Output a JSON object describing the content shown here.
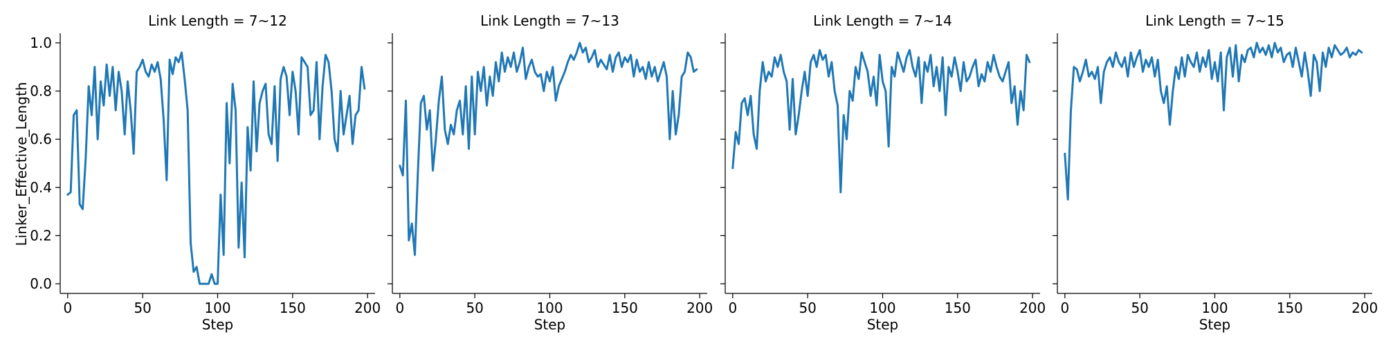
{
  "chart_data": {
    "type": "line",
    "layout": "facet-row",
    "xlabel": "Step",
    "ylabel": "Linker_Effective_Length",
    "xlim": [
      -5,
      205
    ],
    "ylim": [
      -0.04,
      1.04
    ],
    "x_ticks": [
      0,
      50,
      100,
      150,
      200
    ],
    "x_tick_labels": [
      "0",
      "50",
      "100",
      "150",
      "200"
    ],
    "y_ticks": [
      0.0,
      0.2,
      0.4,
      0.6,
      0.8,
      1.0
    ],
    "y_tick_labels": [
      "0.0",
      "0.2",
      "0.4",
      "0.6",
      "0.8",
      "1.0"
    ],
    "sharey": true,
    "grid": false,
    "line_color": "#1f77b4",
    "panels": [
      {
        "title": "Link Length = 7~12",
        "x": [
          0,
          2,
          4,
          6,
          8,
          10,
          12,
          14,
          16,
          18,
          20,
          22,
          24,
          26,
          28,
          30,
          32,
          34,
          36,
          38,
          40,
          42,
          44,
          46,
          48,
          50,
          52,
          54,
          56,
          58,
          60,
          62,
          64,
          66,
          68,
          70,
          72,
          74,
          76,
          78,
          80,
          82,
          84,
          86,
          88,
          90,
          92,
          94,
          96,
          98,
          100,
          102,
          104,
          106,
          108,
          110,
          112,
          114,
          116,
          118,
          120,
          122,
          124,
          126,
          128,
          130,
          132,
          134,
          136,
          138,
          140,
          142,
          144,
          146,
          148,
          150,
          152,
          154,
          156,
          158,
          160,
          162,
          164,
          166,
          168,
          170,
          172,
          174,
          176,
          178,
          180,
          182,
          184,
          186,
          188,
          190,
          192,
          194,
          196,
          198
        ],
        "y": [
          0.37,
          0.38,
          0.7,
          0.72,
          0.33,
          0.31,
          0.52,
          0.82,
          0.7,
          0.9,
          0.6,
          0.84,
          0.74,
          0.91,
          0.78,
          0.9,
          0.72,
          0.88,
          0.8,
          0.62,
          0.84,
          0.72,
          0.54,
          0.88,
          0.9,
          0.93,
          0.88,
          0.86,
          0.91,
          0.88,
          0.92,
          0.85,
          0.68,
          0.43,
          0.93,
          0.87,
          0.94,
          0.92,
          0.96,
          0.85,
          0.72,
          0.17,
          0.05,
          0.07,
          0.0,
          0.0,
          0.0,
          0.0,
          0.04,
          0.0,
          0.0,
          0.37,
          0.12,
          0.75,
          0.5,
          0.83,
          0.72,
          0.15,
          0.42,
          0.11,
          0.65,
          0.47,
          0.84,
          0.55,
          0.75,
          0.8,
          0.83,
          0.62,
          0.58,
          0.82,
          0.51,
          0.85,
          0.9,
          0.86,
          0.7,
          0.88,
          0.8,
          0.62,
          0.94,
          0.92,
          0.9,
          0.7,
          0.72,
          0.92,
          0.6,
          0.82,
          0.95,
          0.92,
          0.8,
          0.6,
          0.55,
          0.8,
          0.62,
          0.7,
          0.78,
          0.58,
          0.7,
          0.72,
          0.9,
          0.81
        ]
      },
      {
        "title": "Link Length = 7~13",
        "x": [
          0,
          2,
          4,
          6,
          8,
          10,
          12,
          14,
          16,
          18,
          20,
          22,
          24,
          26,
          28,
          30,
          32,
          34,
          36,
          38,
          40,
          42,
          44,
          46,
          48,
          50,
          52,
          54,
          56,
          58,
          60,
          62,
          64,
          66,
          68,
          70,
          72,
          74,
          76,
          78,
          80,
          82,
          84,
          86,
          88,
          90,
          92,
          94,
          96,
          98,
          100,
          102,
          104,
          106,
          108,
          110,
          112,
          114,
          116,
          118,
          120,
          122,
          124,
          126,
          128,
          130,
          132,
          134,
          136,
          138,
          140,
          142,
          144,
          146,
          148,
          150,
          152,
          154,
          156,
          158,
          160,
          162,
          164,
          166,
          168,
          170,
          172,
          174,
          176,
          178,
          180,
          182,
          184,
          186,
          188,
          190,
          192,
          194,
          196,
          198
        ],
        "y": [
          0.49,
          0.45,
          0.76,
          0.18,
          0.25,
          0.12,
          0.46,
          0.75,
          0.78,
          0.64,
          0.72,
          0.47,
          0.6,
          0.76,
          0.86,
          0.64,
          0.58,
          0.66,
          0.62,
          0.72,
          0.76,
          0.62,
          0.82,
          0.56,
          0.86,
          0.62,
          0.88,
          0.8,
          0.9,
          0.74,
          0.86,
          0.78,
          0.92,
          0.84,
          0.96,
          0.88,
          0.94,
          0.9,
          0.96,
          0.88,
          0.92,
          0.98,
          0.85,
          0.9,
          0.93,
          0.88,
          0.86,
          0.87,
          0.8,
          0.88,
          0.84,
          0.9,
          0.76,
          0.82,
          0.85,
          0.88,
          0.92,
          0.95,
          0.93,
          0.96,
          1.0,
          0.96,
          0.98,
          0.92,
          0.94,
          0.97,
          0.9,
          0.93,
          0.91,
          0.89,
          0.95,
          0.88,
          0.94,
          0.96,
          0.9,
          0.94,
          0.92,
          0.95,
          0.86,
          0.93,
          0.88,
          0.9,
          0.85,
          0.92,
          0.86,
          0.9,
          0.84,
          0.88,
          0.92,
          0.86,
          0.6,
          0.8,
          0.62,
          0.7,
          0.86,
          0.88,
          0.96,
          0.94,
          0.88,
          0.89
        ]
      },
      {
        "title": "Link Length = 7~14",
        "x": [
          0,
          2,
          4,
          6,
          8,
          10,
          12,
          14,
          16,
          18,
          20,
          22,
          24,
          26,
          28,
          30,
          32,
          34,
          36,
          38,
          40,
          42,
          44,
          46,
          48,
          50,
          52,
          54,
          56,
          58,
          60,
          62,
          64,
          66,
          68,
          70,
          72,
          74,
          76,
          78,
          80,
          82,
          84,
          86,
          88,
          90,
          92,
          94,
          96,
          98,
          100,
          102,
          104,
          106,
          108,
          110,
          112,
          114,
          116,
          118,
          120,
          122,
          124,
          126,
          128,
          130,
          132,
          134,
          136,
          138,
          140,
          142,
          144,
          146,
          148,
          150,
          152,
          154,
          156,
          158,
          160,
          162,
          164,
          166,
          168,
          170,
          172,
          174,
          176,
          178,
          180,
          182,
          184,
          186,
          188,
          190,
          192,
          194,
          196,
          198
        ],
        "y": [
          0.48,
          0.63,
          0.58,
          0.75,
          0.77,
          0.7,
          0.78,
          0.62,
          0.56,
          0.8,
          0.92,
          0.84,
          0.88,
          0.86,
          0.94,
          0.9,
          0.95,
          0.88,
          0.84,
          0.64,
          0.85,
          0.62,
          0.7,
          0.8,
          0.88,
          0.78,
          0.92,
          0.95,
          0.9,
          0.97,
          0.93,
          0.95,
          0.86,
          0.92,
          0.8,
          0.74,
          0.38,
          0.7,
          0.6,
          0.8,
          0.76,
          0.9,
          0.85,
          0.96,
          0.92,
          0.88,
          0.78,
          0.86,
          0.74,
          0.95,
          0.84,
          0.8,
          0.57,
          0.9,
          0.86,
          0.96,
          0.92,
          0.88,
          0.94,
          0.97,
          0.9,
          0.86,
          0.94,
          0.75,
          0.92,
          0.88,
          0.95,
          0.82,
          0.9,
          0.8,
          0.94,
          0.7,
          0.9,
          0.86,
          0.94,
          0.88,
          0.8,
          0.92,
          0.84,
          0.86,
          0.9,
          0.93,
          0.82,
          0.87,
          0.84,
          0.92,
          0.88,
          0.95,
          0.9,
          0.86,
          0.84,
          0.88,
          0.92,
          0.75,
          0.82,
          0.66,
          0.8,
          0.72,
          0.95,
          0.92
        ]
      },
      {
        "title": "Link Length = 7~15",
        "x": [
          0,
          2,
          4,
          6,
          8,
          10,
          12,
          14,
          16,
          18,
          20,
          22,
          24,
          26,
          28,
          30,
          32,
          34,
          36,
          38,
          40,
          42,
          44,
          46,
          48,
          50,
          52,
          54,
          56,
          58,
          60,
          62,
          64,
          66,
          68,
          70,
          72,
          74,
          76,
          78,
          80,
          82,
          84,
          86,
          88,
          90,
          92,
          94,
          96,
          98,
          100,
          102,
          104,
          106,
          108,
          110,
          112,
          114,
          116,
          118,
          120,
          122,
          124,
          126,
          128,
          130,
          132,
          134,
          136,
          138,
          140,
          142,
          144,
          146,
          148,
          150,
          152,
          154,
          156,
          158,
          160,
          162,
          164,
          166,
          168,
          170,
          172,
          174,
          176,
          178,
          180,
          182,
          184,
          186,
          188,
          190,
          192,
          194,
          196,
          198
        ],
        "y": [
          0.54,
          0.35,
          0.72,
          0.9,
          0.89,
          0.84,
          0.88,
          0.93,
          0.86,
          0.88,
          0.85,
          0.9,
          0.75,
          0.88,
          0.92,
          0.94,
          0.9,
          0.96,
          0.92,
          0.9,
          0.94,
          0.86,
          0.96,
          0.9,
          0.94,
          0.97,
          0.88,
          0.93,
          0.9,
          0.94,
          0.86,
          0.93,
          0.8,
          0.75,
          0.82,
          0.66,
          0.8,
          0.9,
          0.85,
          0.94,
          0.86,
          0.95,
          0.92,
          0.9,
          0.96,
          0.88,
          0.94,
          0.9,
          0.97,
          0.85,
          0.92,
          0.84,
          0.96,
          0.72,
          0.94,
          0.98,
          0.86,
          0.99,
          0.84,
          0.95,
          0.92,
          0.97,
          0.98,
          0.94,
          1.0,
          0.96,
          0.98,
          0.95,
          0.99,
          0.94,
          1.0,
          0.96,
          0.98,
          0.92,
          0.95,
          0.96,
          0.9,
          0.98,
          0.92,
          0.86,
          0.96,
          0.88,
          0.78,
          0.95,
          0.92,
          0.8,
          0.96,
          0.9,
          0.98,
          0.94,
          0.99,
          0.97,
          0.95,
          0.96,
          0.98,
          0.94,
          0.96,
          0.95,
          0.97,
          0.96
        ]
      }
    ]
  }
}
